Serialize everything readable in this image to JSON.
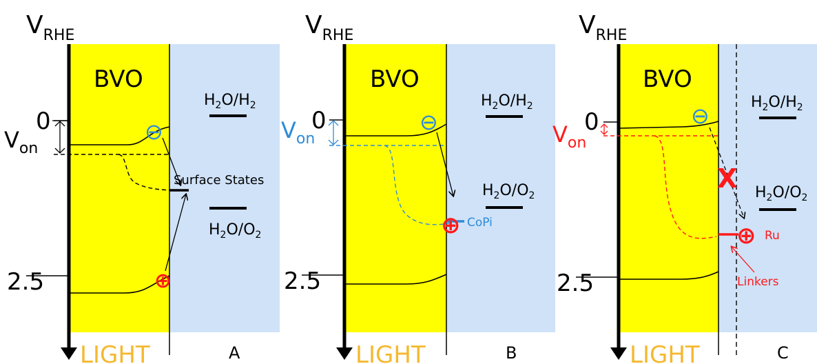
{
  "panels": [
    {
      "axis_label": "V",
      "axis_sub": "RHE",
      "material": "BVO",
      "tick_zero": "0",
      "tick_low": "2.5",
      "von_main": "V",
      "von_sub": "on",
      "couple1_a": "H",
      "couple1_b": "2",
      "couple1_c": "O/H",
      "couple1_d": "2",
      "couple2_a": "H",
      "couple2_b": "2",
      "couple2_c": "O/O",
      "couple2_d": "2",
      "electron": "⊖",
      "hole": "⊕",
      "annotation": "Surface States",
      "light": "LIGHT",
      "letter": "A"
    },
    {
      "axis_label": "V",
      "axis_sub": "RHE",
      "material": "BVO",
      "tick_zero": "0",
      "tick_low": "2.5",
      "von_main": "V",
      "von_sub": "on",
      "couple1_a": "H",
      "couple1_b": "2",
      "couple1_c": "O/H",
      "couple1_d": "2",
      "couple2_a": "H",
      "couple2_b": "2",
      "couple2_c": "O/O",
      "couple2_d": "2",
      "electron": "⊖",
      "hole": "⊕",
      "annotation": "CoPi",
      "light": "LIGHT",
      "letter": "B"
    },
    {
      "axis_label": "V",
      "axis_sub": "RHE",
      "material": "BVO",
      "tick_zero": "0",
      "tick_low": "2.5",
      "von_main": "V",
      "von_sub": "on",
      "couple1_a": "H",
      "couple1_b": "2",
      "couple1_c": "O/H",
      "couple1_d": "2",
      "couple2_a": "H",
      "couple2_b": "2",
      "couple2_c": "O/O",
      "couple2_d": "2",
      "electron": "⊖",
      "hole": "⊕",
      "annotation": "Ru",
      "annotation2": "Linkers",
      "cross": "X",
      "light": "LIGHT",
      "letter": "C"
    }
  ],
  "colors": {
    "semiconductor": "#ffff00",
    "electrolyte": "#cfe2f8",
    "light_text": "#f5b82e",
    "blue_accent": "#2e8bd8",
    "red_accent": "#ff1a1a"
  }
}
